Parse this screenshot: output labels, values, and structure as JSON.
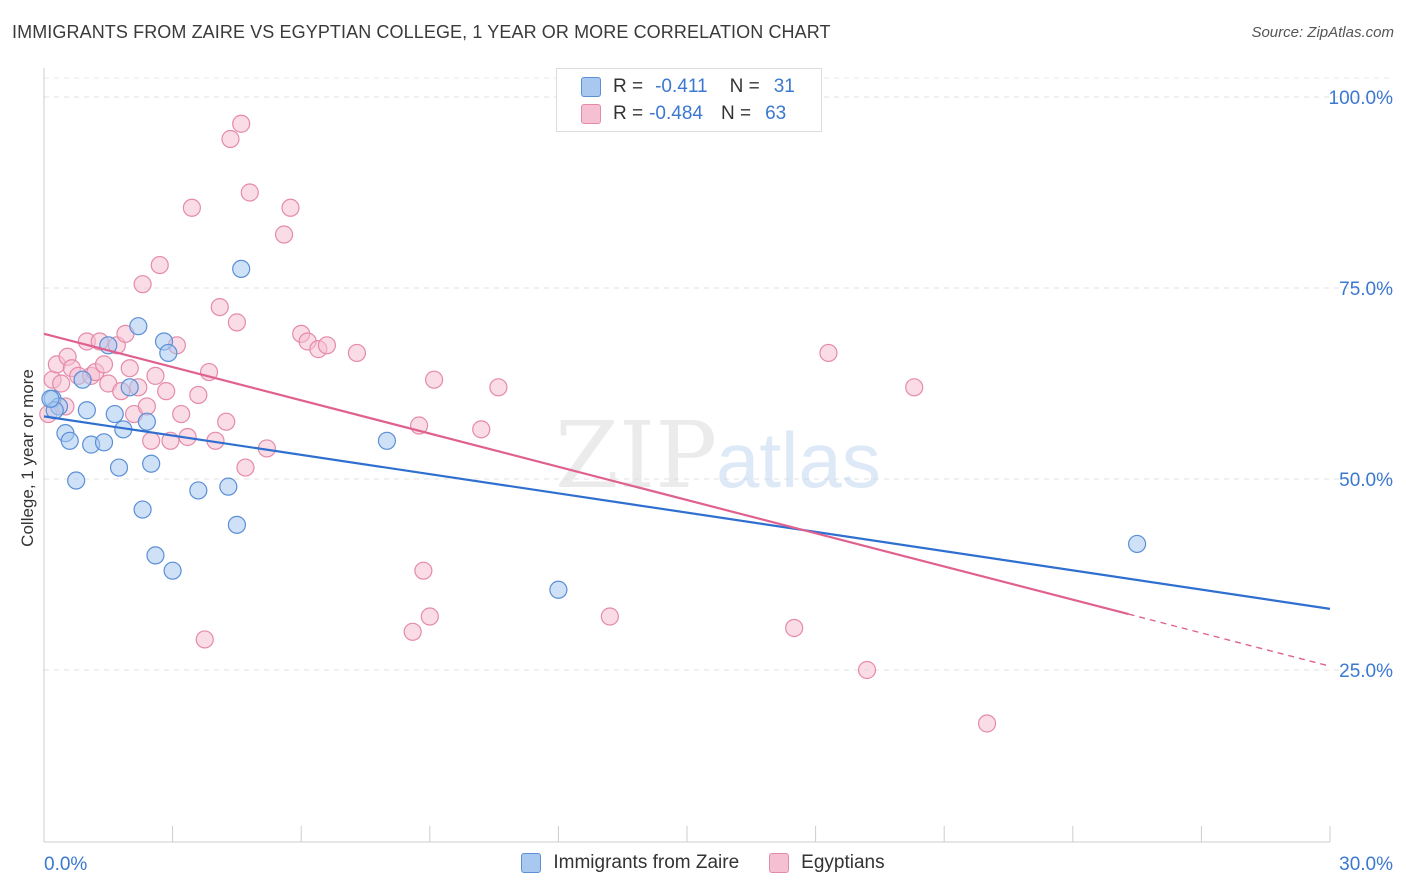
{
  "header": {
    "title": "IMMIGRANTS FROM ZAIRE VS EGYPTIAN COLLEGE, 1 YEAR OR MORE CORRELATION CHART",
    "source": "Source: ZipAtlas.com"
  },
  "watermark": {
    "part1": "ZIP",
    "part2": "atlas"
  },
  "legend": {
    "rows": [
      {
        "r_label": "R =",
        "r_value": "-0.411",
        "n_label": "N =",
        "n_value": "31"
      },
      {
        "r_label": "R =",
        "r_value": "-0.484",
        "n_label": "N =",
        "n_value": "63"
      }
    ]
  },
  "chart_data": {
    "type": "scatter",
    "title": "IMMIGRANTS FROM ZAIRE VS EGYPTIAN COLLEGE, 1 YEAR OR MORE CORRELATION CHART",
    "xlabel": "",
    "ylabel": "College, 1 year or more",
    "xlim": [
      0,
      30
    ],
    "ylim": [
      0,
      105
    ],
    "x_tick_labels": [
      "0.0%",
      "30.0%"
    ],
    "y_tick_labels": [
      "25.0%",
      "50.0%",
      "75.0%",
      "100.0%"
    ],
    "y_ticks": [
      25,
      50,
      75,
      100
    ],
    "series": [
      {
        "name": "Immigrants from Zaire",
        "color": "#5b8fd6",
        "fill": "#a8c8f0",
        "line_color": "#2e6fd0",
        "trend": {
          "x0": 0,
          "y0": 58.2,
          "x1": 30,
          "y1": 33.0,
          "solid_until": 30
        },
        "points": [
          [
            0.2,
            60.5
          ],
          [
            0.35,
            59.5
          ],
          [
            0.5,
            56.0
          ],
          [
            0.6,
            55.0
          ],
          [
            0.75,
            49.8
          ],
          [
            0.9,
            63.0
          ],
          [
            1.0,
            59.0
          ],
          [
            1.1,
            54.5
          ],
          [
            1.4,
            54.8
          ],
          [
            1.5,
            67.5
          ],
          [
            1.65,
            58.5
          ],
          [
            1.75,
            51.5
          ],
          [
            1.85,
            56.5
          ],
          [
            2.0,
            62.0
          ],
          [
            2.2,
            70.0
          ],
          [
            2.3,
            46.0
          ],
          [
            2.4,
            57.5
          ],
          [
            2.5,
            52.0
          ],
          [
            2.6,
            40.0
          ],
          [
            2.8,
            68.0
          ],
          [
            2.9,
            66.5
          ],
          [
            3.0,
            38.0
          ],
          [
            3.6,
            48.5
          ],
          [
            4.3,
            49.0
          ],
          [
            4.5,
            44.0
          ],
          [
            4.6,
            77.5
          ],
          [
            8.0,
            55.0
          ],
          [
            12.0,
            35.5
          ],
          [
            25.5,
            41.5
          ],
          [
            0.25,
            59.0
          ],
          [
            0.15,
            60.5
          ]
        ]
      },
      {
        "name": "Egyptians",
        "color": "#e58aaa",
        "fill": "#f5c0d2",
        "line_color": "#e0618f",
        "trend": {
          "x0": 0,
          "y0": 69.0,
          "x1": 30,
          "y1": 25.5,
          "solid_until": 25.3
        },
        "points": [
          [
            0.1,
            58.5
          ],
          [
            0.2,
            63.0
          ],
          [
            0.3,
            65.0
          ],
          [
            0.4,
            62.5
          ],
          [
            0.5,
            59.5
          ],
          [
            0.55,
            66.0
          ],
          [
            0.65,
            64.5
          ],
          [
            0.8,
            63.5
          ],
          [
            1.0,
            68.0
          ],
          [
            1.1,
            63.5
          ],
          [
            1.2,
            64.0
          ],
          [
            1.3,
            68.0
          ],
          [
            1.4,
            65.0
          ],
          [
            1.5,
            62.5
          ],
          [
            1.7,
            67.5
          ],
          [
            1.8,
            61.5
          ],
          [
            1.9,
            69.0
          ],
          [
            2.0,
            64.5
          ],
          [
            2.1,
            58.5
          ],
          [
            2.2,
            62.0
          ],
          [
            2.3,
            75.5
          ],
          [
            2.4,
            59.5
          ],
          [
            2.5,
            55.0
          ],
          [
            2.6,
            63.5
          ],
          [
            2.7,
            78.0
          ],
          [
            2.85,
            61.5
          ],
          [
            2.95,
            55.0
          ],
          [
            3.1,
            67.5
          ],
          [
            3.2,
            58.5
          ],
          [
            3.35,
            55.5
          ],
          [
            3.45,
            85.5
          ],
          [
            3.6,
            61.0
          ],
          [
            3.75,
            29.0
          ],
          [
            3.85,
            64.0
          ],
          [
            4.0,
            55.0
          ],
          [
            4.1,
            72.5
          ],
          [
            4.25,
            57.5
          ],
          [
            4.35,
            94.5
          ],
          [
            4.5,
            70.5
          ],
          [
            4.6,
            96.5
          ],
          [
            4.7,
            51.5
          ],
          [
            4.8,
            87.5
          ],
          [
            5.2,
            54.0
          ],
          [
            5.6,
            82.0
          ],
          [
            5.75,
            85.5
          ],
          [
            6.0,
            69.0
          ],
          [
            6.15,
            68.0
          ],
          [
            6.4,
            67.0
          ],
          [
            6.6,
            67.5
          ],
          [
            7.3,
            66.5
          ],
          [
            8.75,
            57.0
          ],
          [
            8.85,
            38.0
          ],
          [
            9.0,
            32.0
          ],
          [
            9.1,
            63.0
          ],
          [
            8.6,
            30.0
          ],
          [
            10.2,
            56.5
          ],
          [
            10.6,
            62.0
          ],
          [
            13.2,
            32.0
          ],
          [
            17.5,
            30.5
          ],
          [
            18.3,
            66.5
          ],
          [
            19.2,
            25.0
          ],
          [
            20.3,
            62.0
          ],
          [
            22.0,
            18.0
          ]
        ]
      }
    ]
  }
}
